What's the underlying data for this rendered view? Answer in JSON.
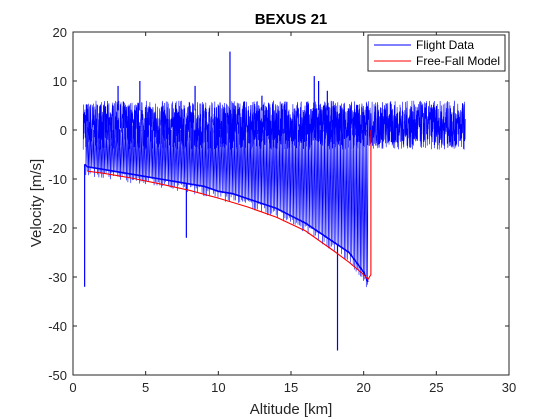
{
  "chart_data": {
    "type": "line",
    "title": "BEXUS 21",
    "xlabel": "Altitude [km]",
    "ylabel": "Velocity [m/s]",
    "xlim": [
      0,
      30
    ],
    "ylim": [
      -50,
      20
    ],
    "xticks": [
      0,
      5,
      10,
      15,
      20,
      25,
      30
    ],
    "yticks": [
      20,
      10,
      0,
      -10,
      -20,
      -30,
      -40,
      -50
    ],
    "grid": false,
    "legend_position": "top-right",
    "series": [
      {
        "name": "Flight Data",
        "color": "#0000ff",
        "ascent": {
          "x_range": [
            0.7,
            27.0
          ],
          "y_low": -4,
          "y_high": 6
        },
        "descent_envelope": {
          "x": [
            20.3,
            20.0,
            19.0,
            18.0,
            17.0,
            16.0,
            15.0,
            14.0,
            13.0,
            12.0,
            11.0,
            10.0,
            9.0,
            8.0,
            7.0,
            6.0,
            5.0,
            4.0,
            3.0,
            2.0,
            1.0,
            0.8
          ],
          "y": [
            -31,
            -29,
            -25,
            -23,
            -21,
            -19,
            -17.5,
            -16,
            -15,
            -14,
            -13,
            -12.5,
            -11.5,
            -11,
            -10.5,
            -10,
            -9.5,
            -9,
            -8.5,
            -8,
            -7.5,
            -7
          ]
        },
        "spikes": [
          {
            "x": 0.8,
            "y": -32
          },
          {
            "x": 3.1,
            "y": 9
          },
          {
            "x": 4.6,
            "y": 10
          },
          {
            "x": 7.8,
            "y": -22
          },
          {
            "x": 8.4,
            "y": 9
          },
          {
            "x": 10.8,
            "y": 16
          },
          {
            "x": 13.0,
            "y": 7
          },
          {
            "x": 16.6,
            "y": 11
          },
          {
            "x": 16.9,
            "y": 10
          },
          {
            "x": 17.5,
            "y": 8
          },
          {
            "x": 18.2,
            "y": -45
          }
        ]
      },
      {
        "name": "Free-Fall Model",
        "color": "#ff0000",
        "x": [
          1.0,
          2.0,
          4.0,
          6.0,
          8.0,
          10.0,
          12.0,
          14.0,
          16.0,
          18.0,
          19.0,
          20.0,
          20.3,
          20.5,
          20.5
        ],
        "y": [
          -8.4,
          -8.8,
          -9.8,
          -11.0,
          -12.3,
          -13.9,
          -15.7,
          -17.8,
          -20.6,
          -24.8,
          -27.0,
          -29.5,
          -30.5,
          -29.5,
          0
        ]
      }
    ]
  }
}
